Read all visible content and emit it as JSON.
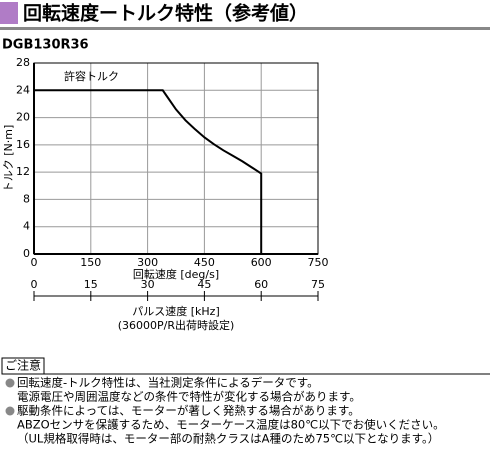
{
  "chart_data": {
    "type": "line",
    "title": "回転速度ートルク特性（参考値）",
    "subtitle": "DGB130R36",
    "xlabel": "回転速度 [deg/s]",
    "ylabel": "トルク [N·m]",
    "annotation": "許容トルク",
    "x": [
      0,
      340,
      350,
      375,
      400,
      425,
      450,
      475,
      500,
      525,
      550,
      575,
      600,
      600
    ],
    "series": [
      {
        "name": "許容トルク",
        "color": "#000000",
        "values": [
          24,
          24,
          23.2,
          21.2,
          19.6,
          18.3,
          17.1,
          16.1,
          15.2,
          14.4,
          13.6,
          12.7,
          11.8,
          0
        ]
      }
    ],
    "xlim": [
      0,
      750
    ],
    "xticks": [
      0,
      150,
      300,
      450,
      600,
      750
    ],
    "ylim": [
      0,
      28
    ],
    "yticks": [
      0,
      4,
      8,
      12,
      16,
      20,
      24,
      28
    ],
    "grid": true,
    "x2label": "パルス速度 [kHz]",
    "x2note": "(36000P/R出荷時設定)",
    "x2lim": [
      0,
      75
    ],
    "x2ticks": [
      0,
      15,
      30,
      45,
      60,
      75
    ]
  },
  "notes": {
    "heading": "ご注意",
    "items": [
      {
        "lines": [
          "回転速度-トルク特性は、当社測定条件によるデータです。",
          "電源電圧や周囲温度などの条件で特性が変化する場合があります。"
        ]
      },
      {
        "lines": [
          "駆動条件によっては、モーターが著しく発熱する場合があります。",
          "ABZOセンサを保護するため、モーターケース温度は80℃以下でお使いください。",
          "（UL規格取得時は、モーター部の耐熱クラスはA種のため75℃以下となります。）"
        ]
      }
    ]
  }
}
